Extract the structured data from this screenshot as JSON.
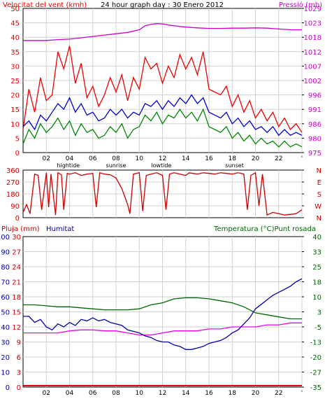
{
  "colors": {
    "wind": "#ee0000",
    "gust": "#0000cc",
    "avg": "#008800",
    "pressure": "#cc00cc",
    "humidity": "#0000aa",
    "rain": "#cc0000",
    "temp": "#006600",
    "dew": "#ee00ee",
    "grid": "#d0d0d0",
    "frame": "#000000"
  },
  "header": {
    "wind_label": "Velocitat del vent (kmh)",
    "title": "24 hour graph day : 30 Enero 2012",
    "pressure_label": "Pressió (mb)"
  },
  "bottom_header": {
    "rain_label": "Pluja (mm)",
    "humidity_label": "Humitat",
    "temp_label": "Temperatura (°C)Punt rosada"
  },
  "x_axis": {
    "hour_labels": [
      "02",
      "04",
      "06",
      "08",
      "10",
      "12",
      "14",
      "16",
      "18",
      "20",
      "22",
      "'"
    ],
    "events": [
      {
        "label": "hightide",
        "x": 3.9
      },
      {
        "label": "sunrise",
        "x": 8.0
      },
      {
        "label": "lowtide",
        "x": 11.9
      },
      {
        "label": "sunset",
        "x": 18.2
      }
    ]
  },
  "chart_data": [
    {
      "type": "line",
      "panel": "wind",
      "xlim": [
        0,
        24
      ],
      "left_axis": {
        "ylim": [
          0,
          50
        ],
        "ticks": [
          "0",
          "5",
          "10",
          "15",
          "20",
          "25",
          "30",
          "35",
          "40",
          "45",
          "50"
        ]
      },
      "right_axis": {
        "ylim": [
          975,
          1029
        ],
        "ticks": [
          "975",
          "980",
          "986",
          "991",
          "996",
          "1002",
          "1007",
          "1012",
          "1018",
          "1023",
          "1029"
        ]
      },
      "series": [
        {
          "name": "pressure",
          "axis": "right",
          "x": [
            0,
            2,
            3,
            4,
            5,
            6,
            7,
            8,
            9,
            10,
            10.5,
            11,
            11.5,
            12,
            12.5,
            13,
            14,
            15,
            16,
            17,
            18,
            19,
            20,
            21,
            22,
            23,
            24
          ],
          "y": [
            1017,
            1017,
            1017.3,
            1017.5,
            1018,
            1018.5,
            1019,
            1019.5,
            1020,
            1021,
            1022.5,
            1023,
            1023.3,
            1023.2,
            1022.8,
            1022.5,
            1022,
            1021.7,
            1021.5,
            1021.5,
            1021.6,
            1021.6,
            1021.7,
            1021.6,
            1021.3,
            1021,
            1021
          ]
        },
        {
          "axis": "left",
          "x": [
            0,
            0.5,
            1,
            1.5,
            2,
            2.5,
            3,
            3.5,
            4,
            4.5,
            5,
            5.5,
            6,
            6.5,
            7,
            7.5,
            8,
            8.5,
            9,
            9.5,
            10,
            10.5,
            11,
            11.5,
            12,
            12.5,
            13,
            13.5,
            14,
            14.5,
            15,
            15.5,
            16,
            16.5,
            17,
            17.5,
            18,
            18.5,
            19,
            19.5,
            20,
            20.5,
            21,
            21.5,
            22,
            22.5,
            23,
            23.5,
            24
          ],
          "y": [
            8,
            22,
            14,
            26,
            18,
            20,
            35,
            29,
            37,
            24,
            31,
            19,
            23,
            16,
            20,
            26,
            21,
            27,
            18,
            26,
            22,
            33,
            29,
            31,
            24,
            30,
            26,
            34,
            29,
            33,
            27,
            35,
            22,
            21,
            20,
            23,
            16,
            20,
            14,
            18,
            12,
            15,
            11,
            14,
            9,
            12,
            8,
            10,
            7
          ]
        },
        {
          "axis": "left",
          "x": [
            0,
            0.5,
            1,
            1.5,
            2,
            2.5,
            3,
            3.5,
            4,
            4.5,
            5,
            5.5,
            6,
            6.5,
            7,
            7.5,
            8,
            8.5,
            9,
            9.5,
            10,
            10.5,
            11,
            11.5,
            12,
            12.5,
            13,
            13.5,
            14,
            14.5,
            15,
            15.5,
            16,
            16.5,
            17,
            17.5,
            18,
            18.5,
            19,
            19.5,
            20,
            20.5,
            21,
            21.5,
            22,
            22.5,
            23,
            23.5,
            24
          ],
          "y": [
            9,
            11,
            8,
            13,
            11,
            14,
            17,
            15,
            19,
            14,
            17,
            13,
            14,
            11,
            12,
            15,
            13,
            15,
            12,
            14,
            13,
            17,
            16,
            18,
            15,
            18,
            16,
            19,
            17,
            20,
            17,
            19,
            14,
            13,
            12,
            14,
            10,
            12,
            9,
            11,
            8,
            9,
            7,
            9,
            6,
            8,
            6,
            7,
            6
          ]
        },
        {
          "axis": "left",
          "x": [
            0,
            0.5,
            1,
            1.5,
            2,
            2.5,
            3,
            3.5,
            4,
            4.5,
            5,
            5.5,
            6,
            6.5,
            7,
            7.5,
            8,
            8.5,
            9,
            9.5,
            10,
            10.5,
            11,
            11.5,
            12,
            12.5,
            13,
            13.5,
            14,
            14.5,
            15,
            15.5,
            16,
            16.5,
            17,
            17.5,
            18,
            18.5,
            19,
            19.5,
            20,
            20.5,
            21,
            21.5,
            22,
            22.5,
            23,
            23.5,
            24
          ],
          "y": [
            3,
            8,
            5,
            10,
            7,
            9,
            12,
            8,
            11,
            6,
            10,
            7,
            8,
            5,
            6,
            9,
            7,
            10,
            5,
            8,
            9,
            13,
            11,
            14,
            10,
            13,
            12,
            15,
            12,
            14,
            11,
            15,
            9,
            8,
            7,
            9,
            5,
            7,
            4,
            6,
            3,
            5,
            3,
            4,
            2,
            4,
            2,
            3,
            2
          ]
        }
      ]
    },
    {
      "type": "line",
      "panel": "direction",
      "xlim": [
        0,
        24
      ],
      "left_axis": {
        "ylim": [
          0,
          360
        ],
        "ticks": [
          "0",
          "90",
          "180",
          "270",
          "360"
        ]
      },
      "right_axis": {
        "ticks": [
          "N",
          "W",
          "S",
          "E",
          "N"
        ]
      },
      "series": [
        {
          "axis": "left",
          "x": [
            0,
            0.3,
            0.6,
            1,
            1.3,
            1.6,
            2,
            2.2,
            2.4,
            2.8,
            3,
            3.3,
            3.5,
            3.8,
            4,
            4.5,
            5,
            5.5,
            6,
            6.3,
            6.6,
            7,
            7.5,
            8,
            8.5,
            9,
            9.2,
            9.5,
            10,
            10.3,
            10.6,
            11,
            11.5,
            12,
            12.3,
            12.6,
            13,
            13.5,
            14,
            14.3,
            14.6,
            15,
            15.5,
            16,
            16.5,
            17,
            17.5,
            18,
            18.5,
            19,
            19.3,
            19.6,
            20,
            20.3,
            20.6,
            21,
            21.5,
            22,
            22.5,
            23,
            23.5,
            24
          ],
          "y": [
            40,
            100,
            30,
            330,
            320,
            60,
            340,
            80,
            330,
            20,
            340,
            325,
            60,
            335,
            330,
            340,
            320,
            330,
            335,
            80,
            340,
            330,
            325,
            300,
            220,
            100,
            30,
            330,
            340,
            50,
            320,
            330,
            340,
            320,
            60,
            330,
            340,
            330,
            320,
            340,
            335,
            330,
            340,
            335,
            330,
            340,
            335,
            330,
            340,
            330,
            60,
            320,
            340,
            90,
            330,
            20,
            40,
            30,
            20,
            25,
            30,
            60
          ]
        }
      ]
    },
    {
      "type": "line",
      "panel": "temp_humidity",
      "xlim": [
        0,
        24
      ],
      "left_axis": {
        "ylim": [
          0,
          100
        ],
        "ticks": [
          "0",
          "10",
          "20",
          "30",
          "40",
          "50",
          "60",
          "70",
          "80",
          "90",
          "100"
        ]
      },
      "rain_axis": {
        "ylim": [
          0,
          30
        ],
        "ticks": [
          "0",
          "3",
          "6",
          "9",
          "12",
          "15",
          "18",
          "21",
          "24",
          "27",
          "30"
        ]
      },
      "right_axis": {
        "ylim": [
          -35,
          40
        ],
        "ticks": [
          "-35",
          "-27",
          "-20",
          "-13",
          "-5",
          "3",
          "10",
          "18",
          "25",
          "33",
          "40"
        ]
      },
      "series": [
        {
          "axis": "rain",
          "x": [
            0,
            24
          ],
          "y": [
            0.3,
            0.3
          ]
        },
        {
          "axis": "right",
          "x": [
            0,
            1,
            2,
            3,
            4,
            5,
            6,
            7,
            8,
            9,
            10,
            11,
            12,
            13,
            14,
            15,
            16,
            17,
            18,
            19,
            20,
            21,
            22,
            23,
            24
          ],
          "y": [
            6,
            6,
            5.5,
            5,
            5,
            4.5,
            4,
            3.5,
            3.5,
            3.5,
            4,
            6,
            7,
            9,
            9.5,
            9.5,
            9,
            8,
            7,
            5,
            2,
            1,
            0,
            -1,
            -1
          ]
        },
        {
          "axis": "right",
          "x": [
            0,
            1,
            2,
            3,
            4,
            5,
            6,
            7,
            8,
            9,
            10,
            11,
            12,
            13,
            14,
            15,
            16,
            17,
            18,
            19,
            20,
            21,
            22,
            23,
            24
          ],
          "y": [
            -8,
            -8,
            -8,
            -8,
            -7,
            -6.5,
            -6.5,
            -7,
            -7,
            -8,
            -9,
            -9,
            -8,
            -7,
            -7,
            -7,
            -6,
            -6,
            -5,
            -5,
            -5,
            -4,
            -4,
            -3,
            -3
          ]
        },
        {
          "axis": "left",
          "x": [
            0,
            0.5,
            1,
            1.5,
            2,
            2.5,
            3,
            3.5,
            4,
            4.5,
            5,
            5.5,
            6,
            6.5,
            7,
            7.5,
            8,
            8.5,
            9,
            9.5,
            10,
            10.5,
            11,
            11.5,
            12,
            12.5,
            13,
            13.5,
            14,
            14.5,
            15,
            15.5,
            16,
            16.5,
            17,
            17.5,
            18,
            18.5,
            19,
            19.5,
            20,
            20.5,
            21,
            21.5,
            22,
            22.5,
            23,
            23.5,
            24
          ],
          "y": [
            47,
            47,
            43,
            45,
            40,
            38,
            42,
            40,
            43,
            41,
            45,
            44,
            46,
            44,
            45,
            43,
            42,
            41,
            38,
            37,
            36,
            34,
            33,
            31,
            30,
            30,
            28,
            27,
            25,
            25,
            26,
            27,
            29,
            30,
            31,
            33,
            36,
            38,
            42,
            46,
            52,
            55,
            58,
            61,
            63,
            65,
            67,
            70,
            72
          ]
        }
      ]
    }
  ]
}
